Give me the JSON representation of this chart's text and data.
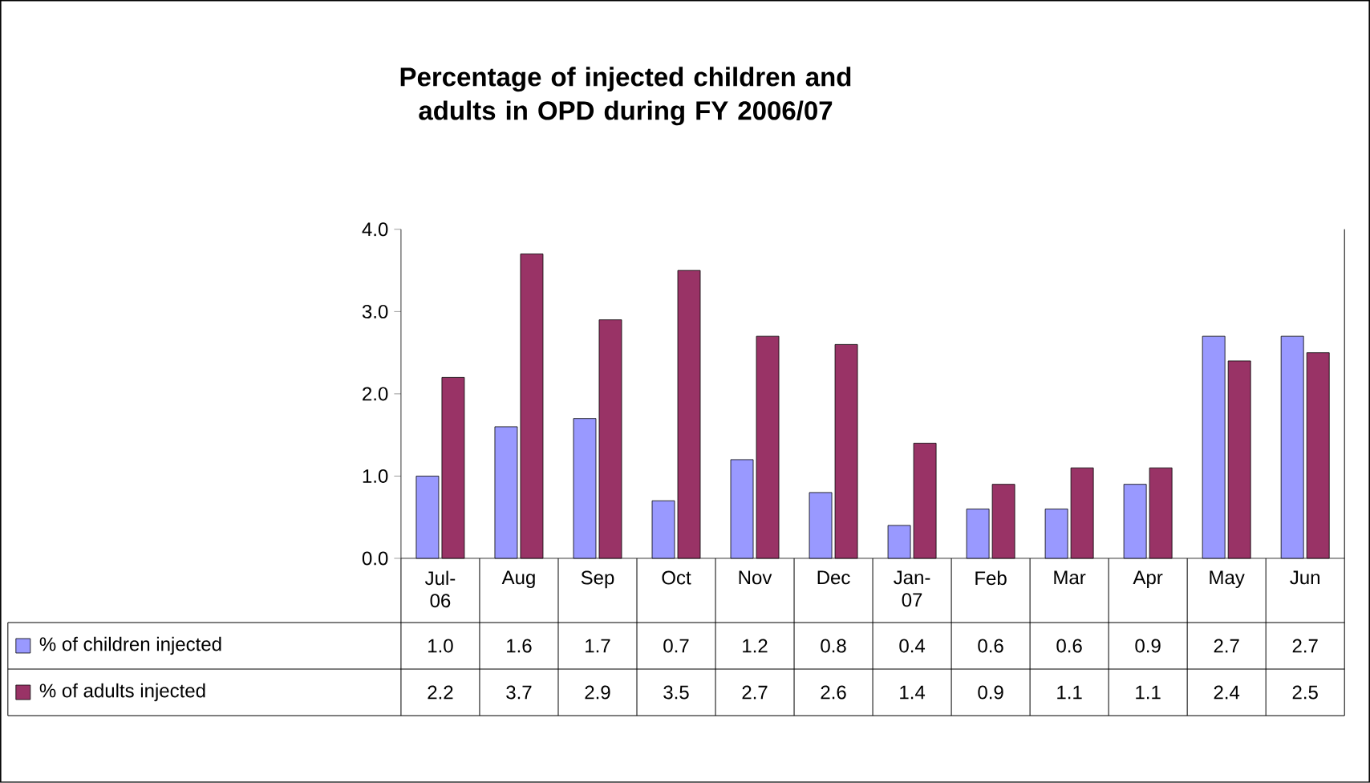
{
  "chart_data": {
    "type": "bar",
    "title": "Percentage of injected children and adults in OPD during FY 2006/07",
    "categories": [
      "Jul-06",
      "Aug",
      "Sep",
      "Oct",
      "Nov",
      "Dec",
      "Jan-07",
      "Feb",
      "Mar",
      "Apr",
      "May",
      "Jun"
    ],
    "series": [
      {
        "name": "% of children injected",
        "color": "#9999ff",
        "values": [
          1.0,
          1.6,
          1.7,
          0.7,
          1.2,
          0.8,
          0.4,
          0.6,
          0.6,
          0.9,
          2.7,
          2.7
        ],
        "value_labels": [
          "1.0",
          "1.6",
          "1.7",
          "0.7",
          "1.2",
          "0.8",
          "0.4",
          "0.6",
          "0.6",
          "0.9",
          "2.7",
          "2.7"
        ]
      },
      {
        "name": "% of adults injected",
        "color": "#993366",
        "values": [
          2.2,
          3.7,
          2.9,
          3.5,
          2.7,
          2.6,
          1.4,
          0.9,
          1.1,
          1.1,
          2.4,
          2.5
        ],
        "value_labels": [
          "2.2",
          "3.7",
          "2.9",
          "3.5",
          "2.7",
          "2.6",
          "1.4",
          "0.9",
          "1.1",
          "1.1",
          "2.4",
          "2.5"
        ]
      }
    ],
    "ylim": [
      0,
      4
    ],
    "yticks": [
      {
        "value": 0,
        "label": "0.0"
      },
      {
        "value": 1,
        "label": "1.0"
      },
      {
        "value": 2,
        "label": "2.0"
      },
      {
        "value": 3,
        "label": "3.0"
      },
      {
        "value": 4,
        "label": "4.0"
      }
    ],
    "legend": "bottom",
    "grid": false
  }
}
